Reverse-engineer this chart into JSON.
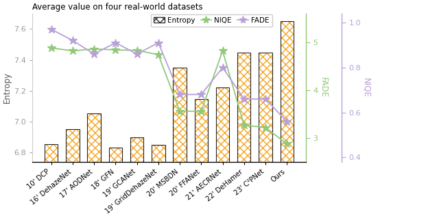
{
  "categories": [
    "10' DCP",
    "16' DehazeNet",
    "17' AODNet",
    "18' GFN",
    "19' GCANet",
    "19' GridDehazeNet",
    "20' MSBDN",
    "20' FFANet",
    "21' AECRNet",
    "22' DeHamer",
    "23' C²PNet",
    "Ours"
  ],
  "entropy": [
    6.855,
    6.952,
    7.055,
    6.832,
    6.9,
    6.852,
    7.35,
    7.148,
    7.22,
    7.448,
    7.448,
    7.648
  ],
  "niqe": [
    4.88,
    4.82,
    4.86,
    4.84,
    4.83,
    4.74,
    3.56,
    3.56,
    4.82,
    3.27,
    3.22,
    2.88
  ],
  "fade": [
    0.97,
    0.92,
    0.86,
    0.91,
    0.86,
    0.91,
    0.68,
    0.68,
    0.8,
    0.66,
    0.66,
    0.56
  ],
  "entropy_ylim": [
    6.74,
    7.7
  ],
  "niqe_ylim": [
    2.5,
    5.6
  ],
  "niqe_ticks": [
    3,
    4,
    5
  ],
  "fade_ylim": [
    0.38,
    1.04
  ],
  "fade_ticks": [
    0.4,
    0.6,
    0.8,
    1.0
  ],
  "title": "Average value on four real-world datasets",
  "ylabel_left": "Entropy",
  "ylabel_fade": "FADE",
  "ylabel_niqe": "NIQE",
  "entropy_yticks": [
    6.8,
    7.0,
    7.2,
    7.4,
    7.6
  ],
  "bar_hatch_color": "#f5a623",
  "niqe_color": "#90c978",
  "fade_color": "#b8a0d8",
  "bg_color": "#ffffff"
}
